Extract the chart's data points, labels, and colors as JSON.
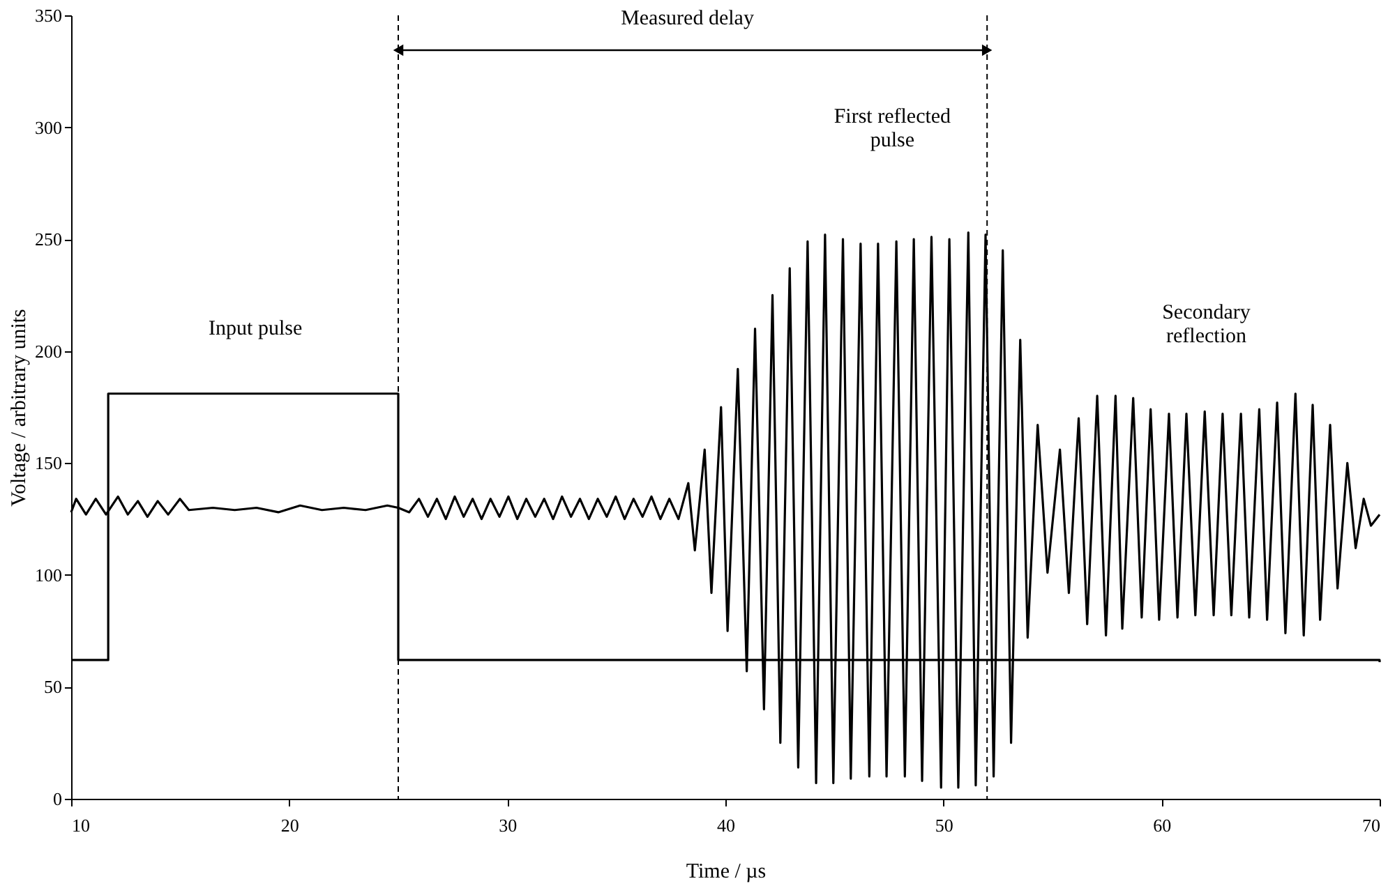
{
  "chart_data": {
    "type": "line",
    "xlabel": "Time / µs",
    "ylabel": "Voltage / arbitrary units",
    "xlim": [
      10,
      70
    ],
    "xticks": [
      10,
      20,
      30,
      40,
      50,
      60,
      70
    ],
    "ylim": [
      0,
      350
    ],
    "yticks": [
      0,
      50,
      100,
      150,
      200,
      250,
      300,
      350
    ],
    "grid": false,
    "line_style": "solid",
    "marker": "none",
    "series": [
      {
        "type": "step",
        "color": "#000000",
        "x": [
          10,
          11.7,
          25,
          70
        ],
        "values": [
          62,
          181,
          62,
          61
        ]
      },
      {
        "type": "line",
        "color": "#000000",
        "x": [
          10,
          10.23,
          10.68,
          11.13,
          11.6,
          12.15,
          12.6,
          13.06,
          13.5,
          13.97,
          14.45,
          14.99,
          15.4,
          16.5,
          17.5,
          18.5,
          19.5,
          20.5,
          21.5,
          22.5,
          23.5,
          24.5,
          25,
          25.5,
          25.95,
          26.36,
          26.77,
          27.18,
          27.59,
          28.0,
          28.41,
          28.82,
          29.23,
          29.64,
          30.05,
          30.46,
          30.87,
          31.28,
          31.69,
          32.1,
          32.51,
          32.92,
          33.33,
          33.74,
          34.15,
          34.56,
          34.97,
          35.38,
          35.79,
          36.2,
          36.61,
          37.02,
          37.43,
          37.85,
          38.3,
          38.6,
          39.05,
          39.36,
          39.8,
          40.1,
          40.57,
          40.98,
          41.36,
          41.77,
          42.16,
          42.52,
          42.95,
          43.34,
          43.77,
          44.16,
          44.57,
          44.95,
          45.39,
          45.75,
          46.2,
          46.6,
          47.0,
          47.39,
          47.84,
          48.23,
          48.64,
          49.02,
          49.45,
          49.89,
          50.27,
          50.68,
          51.14,
          51.48,
          51.93,
          52.3,
          52.72,
          53.1,
          53.52,
          53.86,
          54.32,
          54.77,
          55.34,
          55.75,
          56.2,
          56.59,
          57.05,
          57.45,
          57.89,
          58.2,
          58.7,
          59.09,
          59.5,
          59.89,
          60.34,
          60.73,
          61.14,
          61.55,
          61.98,
          62.39,
          62.8,
          63.2,
          63.64,
          64.02,
          64.48,
          64.84,
          65.3,
          65.68,
          66.14,
          66.52,
          66.93,
          67.27,
          67.73,
          68.07,
          68.52,
          68.9,
          69.27,
          69.6,
          70
        ],
        "values": [
          128,
          134,
          127,
          134,
          127,
          135,
          127,
          133,
          126,
          133,
          127,
          134,
          129,
          130,
          129,
          130,
          128,
          131,
          129,
          130,
          129,
          131,
          130,
          128,
          134,
          126,
          134,
          125,
          135,
          126,
          134,
          125,
          134,
          126,
          135,
          125,
          134,
          126,
          134,
          125,
          135,
          126,
          134,
          125,
          134,
          126,
          135,
          125,
          134,
          126,
          135,
          125,
          134,
          125,
          141,
          111,
          156,
          92,
          175,
          75,
          192,
          57,
          210,
          40,
          225,
          25,
          237,
          14,
          249,
          7,
          252,
          7,
          250,
          9,
          248,
          10,
          248,
          10,
          249,
          10,
          250,
          8,
          251,
          5,
          250,
          5,
          253,
          6,
          252,
          10,
          245,
          25,
          205,
          72,
          167,
          101,
          156,
          92,
          170,
          78,
          180,
          73,
          180,
          76,
          179,
          81,
          174,
          80,
          172,
          81,
          172,
          82,
          173,
          82,
          172,
          82,
          172,
          81,
          174,
          80,
          177,
          74,
          181,
          73,
          176,
          80,
          167,
          94,
          150,
          112,
          134,
          122,
          127
        ]
      }
    ],
    "ref_lines": [
      {
        "axis": "x",
        "value": 25,
        "line_style": "dashed",
        "color": "#000000"
      },
      {
        "axis": "x",
        "value": 52,
        "line_style": "dashed",
        "color": "#000000"
      }
    ],
    "annotations": [
      "Input pulse",
      "Measured delay",
      "First reflected\npulse",
      "Secondary\nreflection"
    ]
  }
}
